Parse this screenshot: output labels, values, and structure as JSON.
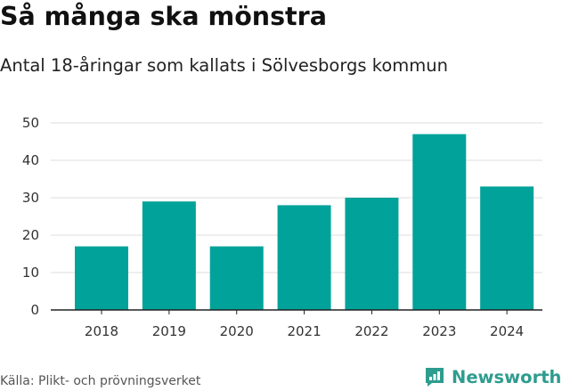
{
  "title": "Så många ska mönstra",
  "subtitle": "Antal 18-åringar som kallats i Sölvesborgs kommun",
  "source": "Källa: Plikt- och prövningsverket",
  "brand": {
    "name": "Newsworthy",
    "icon": "newsworthy-logo-icon"
  },
  "colors": {
    "bar": "#00a29a",
    "grid": "#dddddd",
    "axis": "#222222",
    "brand": "#2e9c8e"
  },
  "chart_data": {
    "type": "bar",
    "categories": [
      "2018",
      "2019",
      "2020",
      "2021",
      "2022",
      "2023",
      "2024"
    ],
    "values": [
      17,
      29,
      17,
      28,
      30,
      47,
      33
    ],
    "ylim": [
      0,
      50
    ],
    "yticks": [
      0,
      10,
      20,
      30,
      40,
      50
    ],
    "grid": true,
    "xlabel": "",
    "ylabel": ""
  }
}
